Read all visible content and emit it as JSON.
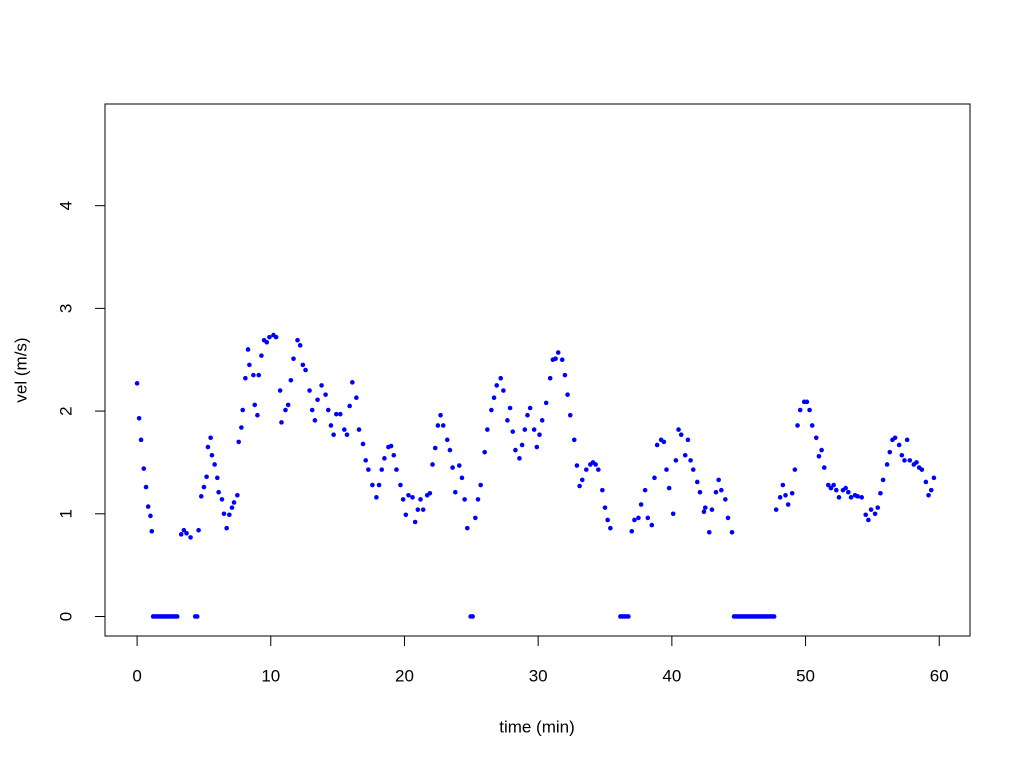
{
  "chart_data": {
    "type": "scatter",
    "xlabel": "time (min)",
    "ylabel": "vel (m/s)",
    "color": "#0000ff",
    "xlim": [
      -2.4,
      62.3
    ],
    "ylim": [
      -0.19,
      4.99
    ],
    "xticks": [
      0,
      10,
      20,
      30,
      40,
      50,
      60
    ],
    "yticks": [
      0,
      1,
      2,
      3,
      4
    ],
    "grid": false,
    "x": [
      0,
      0.15,
      0.3,
      0.5,
      0.67,
      0.83,
      1.0,
      1.1,
      1.2,
      1.35,
      1.5,
      1.65,
      1.8,
      1.95,
      2.1,
      2.25,
      2.4,
      2.55,
      2.7,
      2.85,
      3.0,
      3.3,
      3.5,
      3.7,
      4.0,
      4.35,
      4.5,
      4.6,
      4.8,
      5.0,
      5.2,
      5.3,
      5.5,
      5.6,
      5.8,
      6.0,
      6.1,
      6.35,
      6.5,
      6.7,
      6.9,
      7.1,
      7.25,
      7.5,
      7.6,
      7.8,
      7.9,
      8.1,
      8.3,
      8.4,
      8.7,
      8.8,
      9.0,
      9.1,
      9.3,
      9.5,
      9.7,
      9.9,
      10.2,
      10.4,
      10.7,
      10.8,
      11.1,
      11.3,
      11.5,
      11.7,
      12.0,
      12.2,
      12.4,
      12.6,
      12.9,
      13.1,
      13.3,
      13.5,
      13.8,
      14.1,
      14.3,
      14.5,
      14.7,
      14.9,
      15.2,
      15.5,
      15.7,
      15.9,
      16.1,
      16.4,
      16.6,
      16.9,
      17.1,
      17.3,
      17.6,
      17.9,
      18.1,
      18.3,
      18.5,
      18.8,
      19.0,
      19.2,
      19.4,
      19.7,
      19.9,
      20.1,
      20.3,
      20.6,
      20.8,
      21.0,
      21.2,
      21.4,
      21.7,
      21.9,
      22.1,
      22.3,
      22.5,
      22.7,
      22.9,
      23.2,
      23.4,
      23.6,
      23.8,
      24.1,
      24.3,
      24.5,
      24.7,
      24.95,
      25.1,
      25.3,
      25.5,
      25.7,
      26.0,
      26.2,
      26.5,
      26.7,
      26.9,
      27.2,
      27.4,
      27.7,
      27.9,
      28.1,
      28.3,
      28.6,
      28.8,
      29.0,
      29.2,
      29.4,
      29.7,
      29.9,
      30.1,
      30.3,
      30.6,
      30.9,
      31.1,
      31.3,
      31.5,
      31.8,
      32.0,
      32.2,
      32.4,
      32.7,
      32.9,
      33.1,
      33.3,
      33.6,
      33.9,
      34.1,
      34.3,
      34.5,
      34.8,
      35.0,
      35.2,
      35.4,
      36.15,
      36.3,
      36.45,
      36.6,
      36.75,
      37.0,
      37.2,
      37.5,
      37.7,
      38.0,
      38.2,
      38.5,
      38.7,
      38.9,
      39.2,
      39.4,
      39.6,
      39.8,
      40.1,
      40.3,
      40.5,
      40.7,
      41.0,
      41.2,
      41.4,
      41.6,
      41.9,
      42.1,
      42.4,
      42.5,
      42.8,
      43.0,
      43.3,
      43.5,
      43.7,
      44.0,
      44.2,
      44.5,
      44.65,
      44.8,
      44.95,
      45.1,
      45.25,
      45.4,
      45.55,
      45.7,
      45.85,
      46.0,
      46.15,
      46.3,
      46.45,
      46.6,
      46.75,
      46.9,
      47.05,
      47.2,
      47.35,
      47.5,
      47.65,
      47.8,
      48.1,
      48.3,
      48.5,
      48.7,
      49.0,
      49.2,
      49.4,
      49.6,
      49.9,
      50.1,
      50.3,
      50.5,
      50.8,
      51.0,
      51.2,
      51.4,
      51.7,
      51.9,
      52.1,
      52.3,
      52.5,
      52.8,
      53.0,
      53.2,
      53.4,
      53.7,
      53.9,
      54.2,
      54.5,
      54.7,
      54.9,
      55.2,
      55.4,
      55.6,
      55.8,
      56.1,
      56.3,
      56.5,
      56.7,
      57.0,
      57.2,
      57.4,
      57.6,
      57.8,
      58.1,
      58.3,
      58.5,
      58.7,
      59.0,
      59.2,
      59.4,
      59.6
    ],
    "values": [
      2.27,
      1.93,
      1.72,
      1.44,
      1.26,
      1.07,
      0.98,
      0.83,
      0,
      0,
      0,
      0,
      0,
      0,
      0,
      0,
      0,
      0,
      0,
      0,
      0,
      0.8,
      0.84,
      0.81,
      0.77,
      0,
      0,
      0.84,
      1.17,
      1.26,
      1.36,
      1.65,
      1.74,
      1.57,
      1.48,
      1.35,
      1.21,
      1.14,
      1.0,
      0.86,
      0.99,
      1.06,
      1.11,
      1.18,
      1.7,
      1.84,
      2.01,
      2.32,
      2.6,
      2.45,
      2.35,
      2.06,
      1.96,
      2.35,
      2.54,
      2.69,
      2.67,
      2.72,
      2.74,
      2.72,
      2.2,
      1.89,
      2.01,
      2.06,
      2.3,
      2.51,
      2.69,
      2.64,
      2.45,
      2.4,
      2.2,
      2.01,
      1.91,
      2.11,
      2.25,
      2.16,
      2.01,
      1.86,
      1.77,
      1.97,
      1.97,
      1.82,
      1.77,
      2.05,
      2.28,
      2.13,
      1.82,
      1.68,
      1.52,
      1.43,
      1.28,
      1.16,
      1.28,
      1.43,
      1.54,
      1.65,
      1.66,
      1.57,
      1.43,
      1.28,
      1.14,
      0.99,
      1.18,
      1.16,
      0.92,
      1.04,
      1.14,
      1.04,
      1.18,
      1.2,
      1.48,
      1.64,
      1.86,
      1.96,
      1.86,
      1.72,
      1.62,
      1.45,
      1.21,
      1.47,
      1.35,
      1.14,
      0.86,
      0,
      0,
      0.96,
      1.14,
      1.28,
      1.6,
      1.82,
      2.01,
      2.13,
      2.25,
      2.32,
      2.2,
      1.91,
      2.03,
      1.8,
      1.62,
      1.54,
      1.67,
      1.82,
      1.96,
      2.03,
      1.82,
      1.65,
      1.77,
      1.91,
      2.08,
      2.32,
      2.5,
      2.51,
      2.57,
      2.5,
      2.35,
      2.16,
      1.96,
      1.72,
      1.47,
      1.27,
      1.33,
      1.43,
      1.48,
      1.5,
      1.48,
      1.43,
      1.23,
      1.06,
      0.94,
      0.86,
      0,
      0,
      0,
      0,
      0,
      0.83,
      0.94,
      0.96,
      1.09,
      1.23,
      0.96,
      0.89,
      1.35,
      1.67,
      1.72,
      1.7,
      1.43,
      1.25,
      1.0,
      1.52,
      1.82,
      1.77,
      1.57,
      1.72,
      1.52,
      1.43,
      1.31,
      1.21,
      1.02,
      1.06,
      0.82,
      1.04,
      1.21,
      1.33,
      1.23,
      1.14,
      0.96,
      0.82,
      0,
      0,
      0,
      0,
      0,
      0,
      0,
      0,
      0,
      0,
      0,
      0,
      0,
      0,
      0,
      0,
      0,
      0,
      0,
      0,
      0,
      1.04,
      1.16,
      1.28,
      1.18,
      1.09,
      1.2,
      1.43,
      1.86,
      2.01,
      2.09,
      2.09,
      2.01,
      1.86,
      1.74,
      1.56,
      1.62,
      1.45,
      1.28,
      1.25,
      1.28,
      1.23,
      1.16,
      1.23,
      1.25,
      1.21,
      1.16,
      1.18,
      1.17,
      1.16,
      0.99,
      0.94,
      1.04,
      1.0,
      1.06,
      1.2,
      1.33,
      1.48,
      1.6,
      1.72,
      1.74,
      1.67,
      1.57,
      1.52,
      1.72,
      1.52,
      1.48,
      1.5,
      1.45,
      1.43,
      1.31,
      1.18,
      1.23,
      1.35
    ]
  }
}
